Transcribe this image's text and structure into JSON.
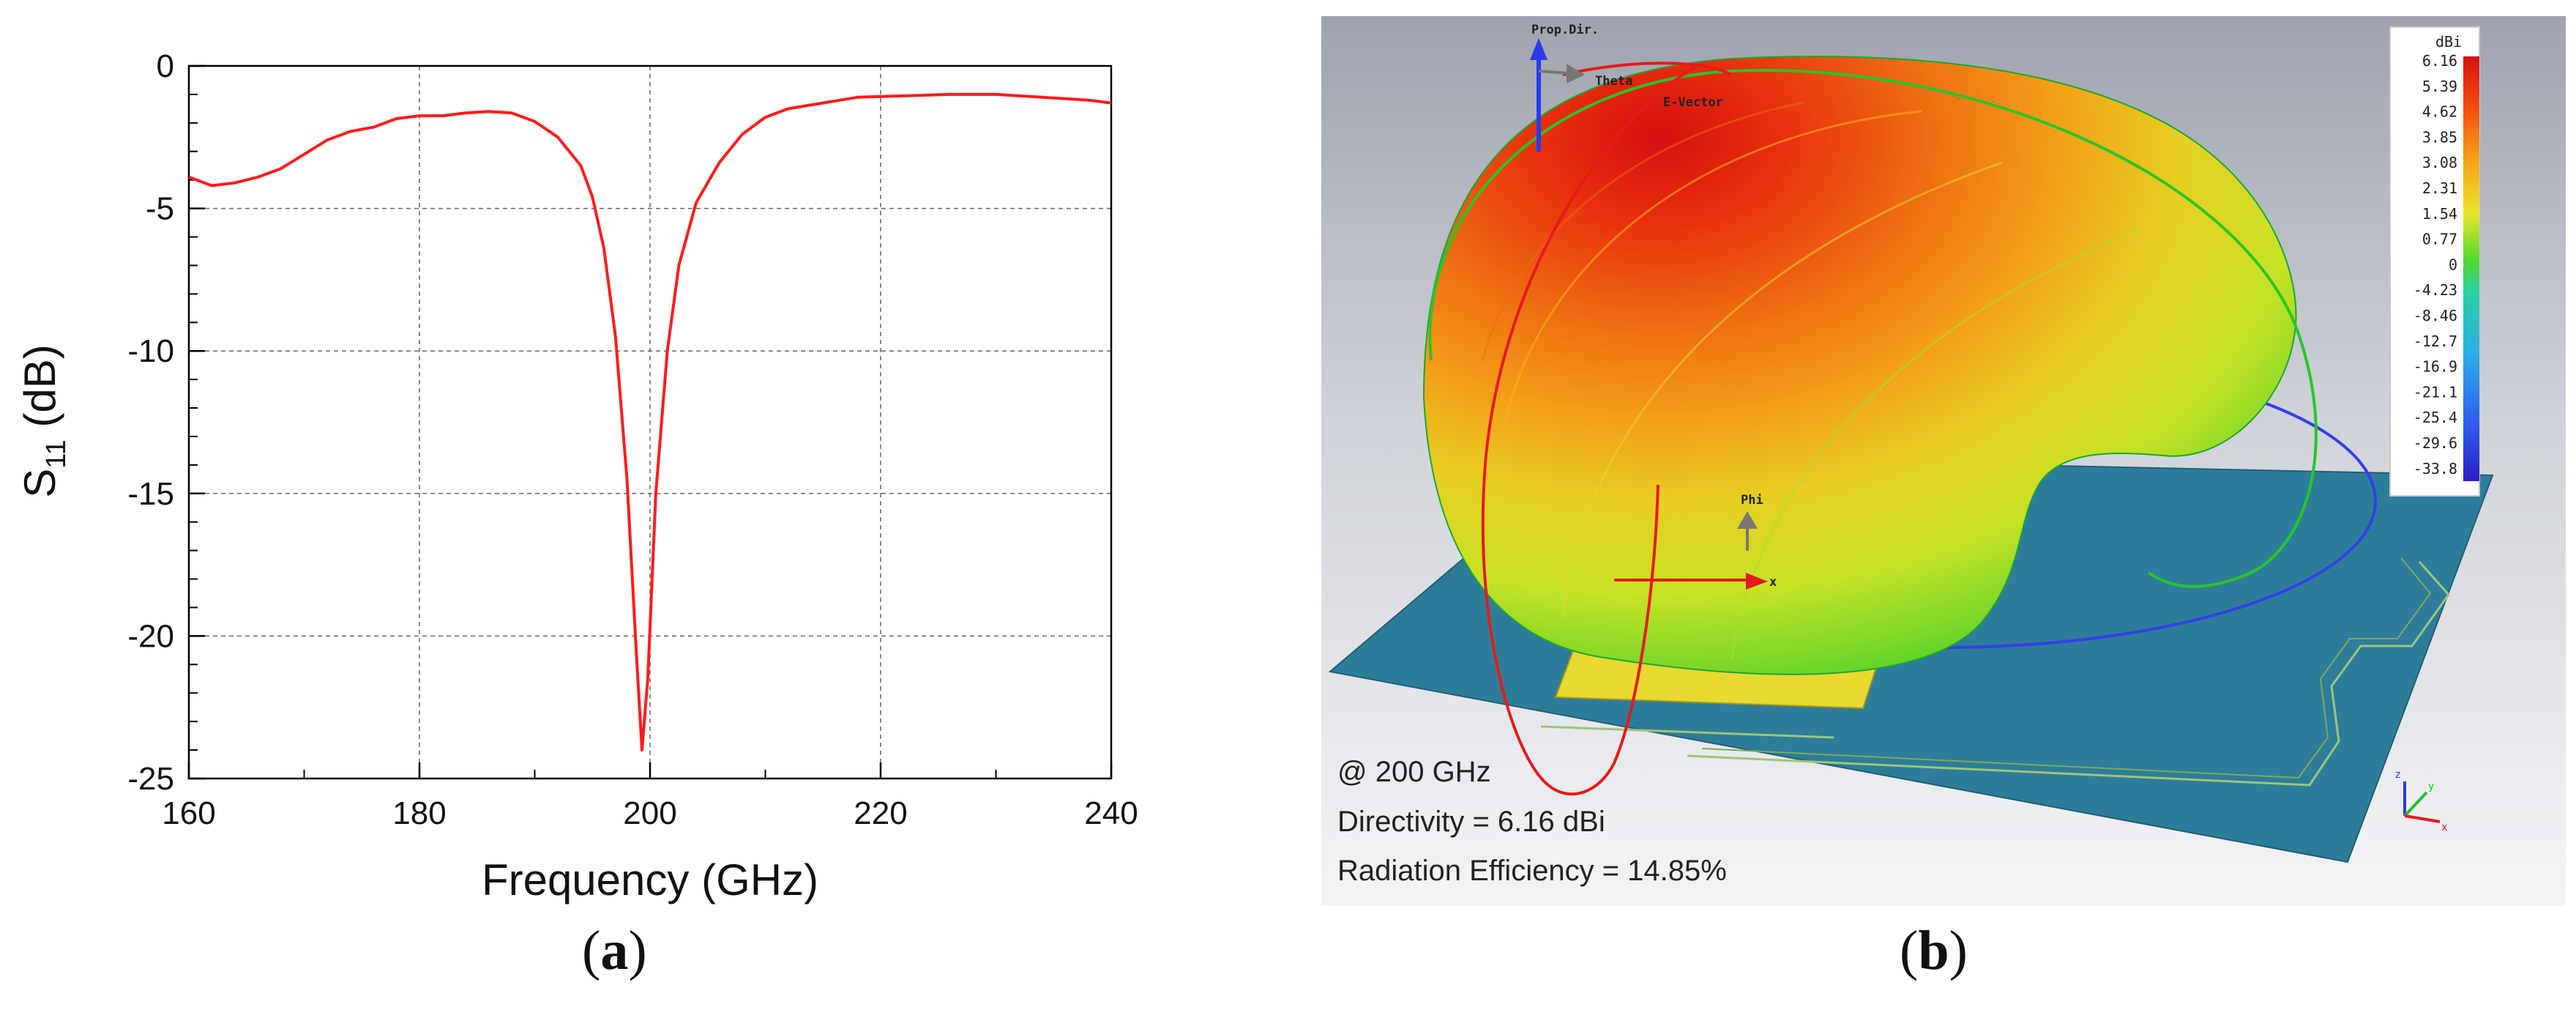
{
  "panel_a": {
    "label_letter": "a",
    "chart_data": {
      "type": "line",
      "xlabel": "Frequency (GHz)",
      "ylabel_main": "S",
      "ylabel_sub": "11",
      "ylabel_unit": "(dB)",
      "xlim": [
        160,
        240
      ],
      "ylim": [
        -25,
        0
      ],
      "xticks": [
        160,
        180,
        200,
        220,
        240
      ],
      "yticks": [
        0,
        -5,
        -10,
        -15,
        -20,
        -25
      ],
      "grid": true,
      "series": [
        {
          "name": "S11",
          "color": "#ff1a1a",
          "points": [
            [
              160,
              -3.9
            ],
            [
              162,
              -4.2
            ],
            [
              164,
              -4.1
            ],
            [
              166,
              -3.9
            ],
            [
              168,
              -3.6
            ],
            [
              170,
              -3.1
            ],
            [
              172,
              -2.6
            ],
            [
              174,
              -2.3
            ],
            [
              176,
              -2.15
            ],
            [
              178,
              -1.85
            ],
            [
              180,
              -1.75
            ],
            [
              182,
              -1.75
            ],
            [
              184,
              -1.65
            ],
            [
              186,
              -1.6
            ],
            [
              188,
              -1.65
            ],
            [
              190,
              -1.95
            ],
            [
              192,
              -2.5
            ],
            [
              194,
              -3.5
            ],
            [
              195,
              -4.6
            ],
            [
              196,
              -6.4
            ],
            [
              197,
              -9.5
            ],
            [
              198,
              -14.5
            ],
            [
              198.8,
              -20.5
            ],
            [
              199.3,
              -24.0
            ],
            [
              199.8,
              -21.5
            ],
            [
              200.5,
              -15.0
            ],
            [
              201.5,
              -10.0
            ],
            [
              202.5,
              -7.0
            ],
            [
              204,
              -4.8
            ],
            [
              206,
              -3.4
            ],
            [
              208,
              -2.4
            ],
            [
              210,
              -1.8
            ],
            [
              212,
              -1.5
            ],
            [
              215,
              -1.3
            ],
            [
              218,
              -1.1
            ],
            [
              222,
              -1.05
            ],
            [
              226,
              -1.0
            ],
            [
              230,
              -1.0
            ],
            [
              234,
              -1.1
            ],
            [
              238,
              -1.2
            ],
            [
              240,
              -1.3
            ]
          ]
        }
      ]
    }
  },
  "panel_b": {
    "label_letter": "b",
    "annotations": {
      "frequency": "@ 200 GHz",
      "directivity": "Directivity = 6.16 dBi",
      "efficiency": "Radiation Efficiency = 14.85%"
    },
    "axis_labels": {
      "prop_dir": "Prop.Dir.",
      "theta": "Theta",
      "e_vector": "E-Vector",
      "phi": "Phi",
      "x": "x"
    },
    "colorbar": {
      "unit": "dBi",
      "labels": [
        "6.16",
        "5.39",
        "4.62",
        "3.85",
        "3.08",
        "2.31",
        "1.54",
        "0.77",
        "0",
        "-4.23",
        "-8.46",
        "-12.7",
        "-16.9",
        "-21.1",
        "-25.4",
        "-29.6",
        "-33.8"
      ]
    },
    "colors": {
      "background_top": "#9ea3ae",
      "background_bottom": "#f4f4f6",
      "substrate": "#2d7d9a",
      "patch": "#e8d930"
    }
  }
}
